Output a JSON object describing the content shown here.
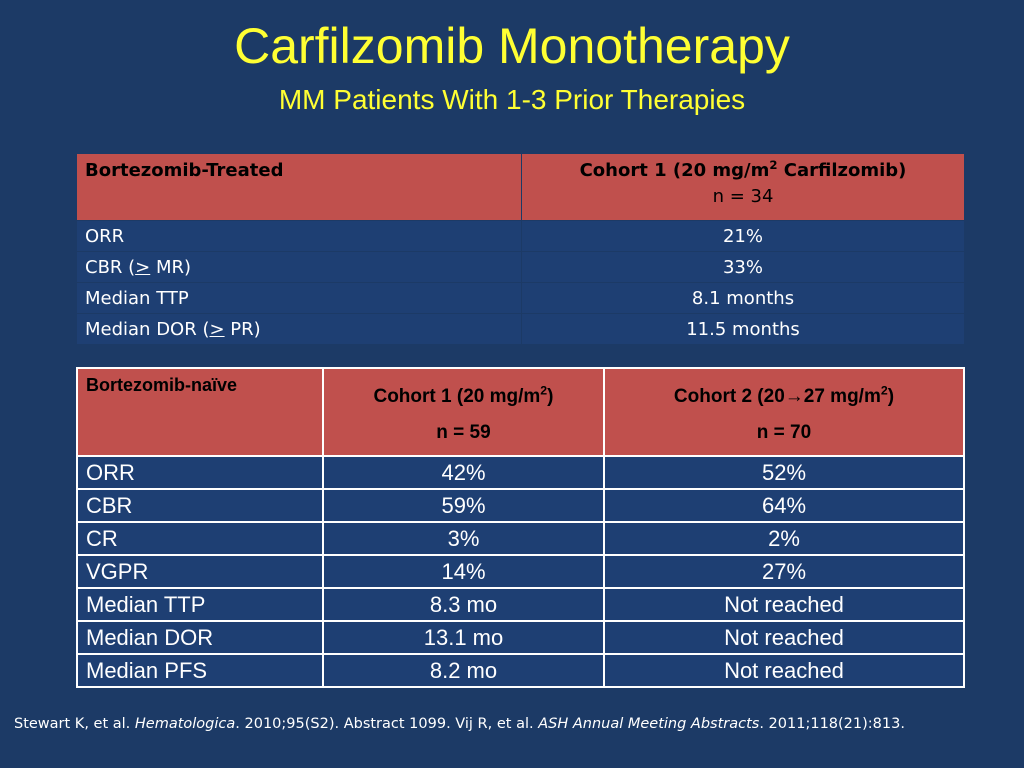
{
  "title": "Carfilzomib Monotherapy",
  "subtitle": "MM Patients With 1-3 Prior Therapies",
  "table1": {
    "header": {
      "col1": "Bortezomib-Treated",
      "col2_pre": "Cohort 1 (20 mg/m",
      "col2_sup": "2",
      "col2_post": " Carfilzomib)",
      "col2_n": "n = 34"
    },
    "rows": [
      {
        "label": "ORR",
        "value": "21%"
      },
      {
        "label_pre": "CBR (",
        "label_u": ">",
        "label_post": " MR)",
        "value": "33%"
      },
      {
        "label": "Median TTP",
        "value": "8.1 months"
      },
      {
        "label_pre": "Median DOR (",
        "label_u": ">",
        "label_post": " PR)",
        "value": "11.5 months"
      }
    ]
  },
  "table2": {
    "header": {
      "col1": "Bortezomib-naïve",
      "col2_pre": "Cohort 1 (20 mg/m",
      "col2_sup": "2",
      "col2_post": ")",
      "col2_n": "n = 59",
      "col3_pre": "Cohort 2 (20→27 mg/m",
      "col3_sup": "2",
      "col3_post": ")",
      "col3_n": "n = 70"
    },
    "rows": [
      {
        "label": "ORR",
        "c1": "42%",
        "c2": "52%"
      },
      {
        "label": "CBR",
        "c1": "59%",
        "c2": "64%"
      },
      {
        "label": "CR",
        "c1": "3%",
        "c2": "2%"
      },
      {
        "label": "VGPR",
        "c1": "14%",
        "c2": "27%"
      },
      {
        "label": "Median TTP",
        "c1": "8.3 mo",
        "c2": "Not reached"
      },
      {
        "label": "Median DOR",
        "c1": "13.1 mo",
        "c2": "Not reached"
      },
      {
        "label": "Median PFS",
        "c1": "8.2 mo",
        "c2": "Not reached"
      }
    ]
  },
  "footer": {
    "p1": "Stewart K, et al. ",
    "i1": "Hematologica",
    "p2": ". 2010;95(S2). Abstract 1099. Vij R, et al. ",
    "i2": "ASH Annual Meeting Abstracts",
    "p3": ". 2011;118(21):813."
  },
  "colors": {
    "background": "#1c3a66",
    "title": "#ffff33",
    "header_fill": "#c0504d",
    "row_fill": "#1e3f73"
  }
}
